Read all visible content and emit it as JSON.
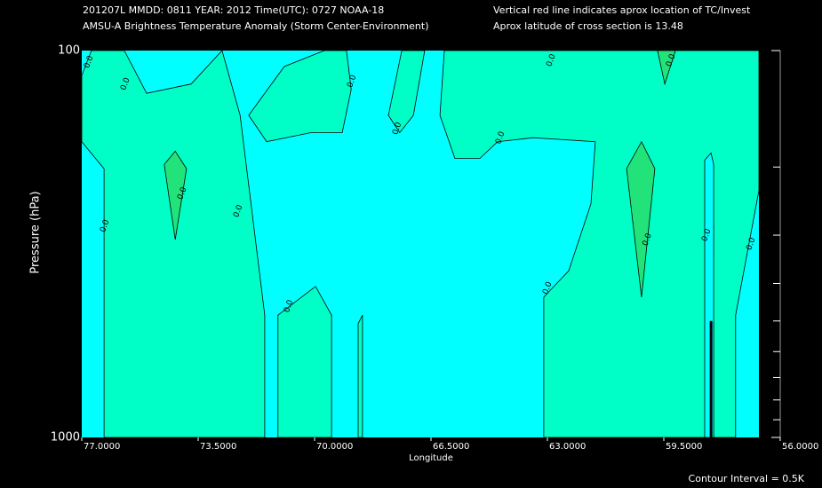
{
  "chart_data": {
    "type": "contour",
    "header_left": [
      "201207L  MMDD: 0811 YEAR: 2012 Time(UTC): 0727 NOAA-18",
      "AMSU-A Brightness Temperature Anomaly (Storm Center-Environment)"
    ],
    "header_right": [
      "Vertical red line indicates aprox location of TC/Invest",
      "Aprox latitude of cross section is 13.48"
    ],
    "x_label": "Longitude",
    "y_label": "Pressure (hPa)",
    "footnote": "Contour Interval = 0.5K",
    "xlim": [
      77,
      56
    ],
    "xticks": [
      {
        "value": 77,
        "label": "77.0000"
      },
      {
        "value": 73.5,
        "label": "73.5000"
      },
      {
        "value": 70,
        "label": "70.0000"
      },
      {
        "value": 66.5,
        "label": "66.5000"
      },
      {
        "value": 63,
        "label": "63.0000"
      },
      {
        "value": 59.5,
        "label": "59.5000"
      },
      {
        "value": 56,
        "label": "56.0000"
      }
    ],
    "ylim": [
      1000,
      100
    ],
    "log_y": true,
    "yticks": [
      100,
      1000
    ],
    "minor_yticks": [
      200,
      300,
      400,
      500,
      600,
      700,
      800,
      900
    ],
    "regions": [
      {
        "color": "#00ffff",
        "points": [
          [
            77,
            100
          ],
          [
            56.64,
            100
          ],
          [
            56.64,
            1000
          ],
          [
            77,
            1000
          ]
        ]
      },
      {
        "color": "#00ffc6",
        "points": [
          [
            77,
            116
          ],
          [
            76.71,
            100
          ],
          [
            75.72,
            100
          ],
          [
            75.05,
            129
          ],
          [
            73.71,
            122
          ],
          [
            72.78,
            100
          ],
          [
            72.24,
            147
          ],
          [
            71.5,
            483
          ],
          [
            71.5,
            1000
          ],
          [
            76.33,
            1000
          ],
          [
            76.33,
            202
          ],
          [
            77,
            172
          ]
        ]
      },
      {
        "color": "#00ffc6",
        "points": [
          [
            71.98,
            147
          ],
          [
            70.91,
            110
          ],
          [
            69.71,
            100
          ],
          [
            69.04,
            100
          ],
          [
            68.9,
            126
          ],
          [
            69.17,
            163
          ],
          [
            70.11,
            163
          ],
          [
            71.44,
            172
          ]
        ]
      },
      {
        "color": "#00ffc6",
        "points": [
          [
            71.1,
            1000
          ],
          [
            71.1,
            483
          ],
          [
            69.97,
            407
          ],
          [
            69.49,
            483
          ],
          [
            69.49,
            1000
          ]
        ]
      },
      {
        "color": "#00ffc6",
        "points": [
          [
            68.69,
            1000
          ],
          [
            68.69,
            508
          ],
          [
            68.56,
            483
          ],
          [
            68.56,
            1000
          ]
        ]
      },
      {
        "color": "#00ffc6",
        "points": [
          [
            67.78,
            147
          ],
          [
            67.38,
            100
          ],
          [
            66.69,
            100
          ],
          [
            67.03,
            147
          ],
          [
            67.44,
            163
          ]
        ]
      },
      {
        "color": "#00ffc6",
        "points": [
          [
            66.23,
            147
          ],
          [
            66.1,
            100
          ],
          [
            56.64,
            100
          ],
          [
            56.64,
            230
          ],
          [
            57.34,
            483
          ],
          [
            57.34,
            1000
          ],
          [
            63.11,
            1000
          ],
          [
            63.11,
            434
          ],
          [
            62.36,
            371
          ],
          [
            61.69,
            249
          ],
          [
            61.56,
            172
          ],
          [
            63.43,
            168
          ],
          [
            64.5,
            172
          ],
          [
            65.03,
            190
          ],
          [
            65.78,
            190
          ]
        ]
      },
      {
        "color": "#00ffff",
        "points": [
          [
            58.27,
            192
          ],
          [
            58.08,
            184
          ],
          [
            58.0,
            197
          ],
          [
            58.0,
            1000
          ],
          [
            58.27,
            1000
          ]
        ]
      },
      {
        "color": "#22e27a",
        "points": [
          [
            74.52,
            197
          ],
          [
            74.19,
            182
          ],
          [
            73.85,
            202
          ],
          [
            74.19,
            308
          ]
        ]
      },
      {
        "color": "#22e27a",
        "points": [
          [
            60.62,
            202
          ],
          [
            60.17,
            172
          ],
          [
            59.77,
            202
          ],
          [
            60.17,
            434
          ]
        ]
      },
      {
        "color": "#22e27a",
        "points": [
          [
            59.69,
            100
          ],
          [
            59.47,
            122
          ],
          [
            59.15,
            100
          ]
        ]
      }
    ],
    "contour_labels": [
      {
        "text": "0.0",
        "lon": 76.79,
        "p": 107
      },
      {
        "text": "0.0",
        "lon": 75.69,
        "p": 122
      },
      {
        "text": "0.0",
        "lon": 76.31,
        "p": 284
      },
      {
        "text": "0.0",
        "lon": 73.98,
        "p": 234
      },
      {
        "text": "0.0",
        "lon": 72.3,
        "p": 260
      },
      {
        "text": "0.0",
        "lon": 70.78,
        "p": 458
      },
      {
        "text": "0.0",
        "lon": 68.88,
        "p": 120
      },
      {
        "text": "0.0",
        "lon": 67.52,
        "p": 159
      },
      {
        "text": "0.0",
        "lon": 64.42,
        "p": 168
      },
      {
        "text": "0.0",
        "lon": 62.89,
        "p": 106
      },
      {
        "text": "0.0",
        "lon": 63.0,
        "p": 411
      },
      {
        "text": "0.0",
        "lon": 60.0,
        "p": 308
      },
      {
        "text": "0.0",
        "lon": 58.22,
        "p": 300
      },
      {
        "text": "0.0",
        "lon": 56.88,
        "p": 316
      },
      {
        "text": "0.0",
        "lon": 59.29,
        "p": 106
      }
    ],
    "tc_lon": 58.08
  }
}
